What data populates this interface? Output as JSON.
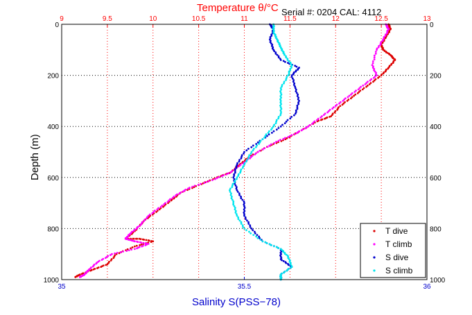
{
  "chart_data": {
    "type": "scatter",
    "title": "Temperature θ/°C",
    "serial_text": "Serial #: 0204  CAL: 4112",
    "top_axis": {
      "label": "Temperature θ/°C",
      "range": [
        9,
        13
      ],
      "ticks": [
        "9",
        "9.5",
        "10",
        "10.5",
        "11",
        "11.5",
        "12",
        "12.5",
        "13"
      ],
      "color": "#ff0000"
    },
    "bottom_axis": {
      "label": "Salinity S(PSS−78)",
      "range": [
        35,
        36
      ],
      "ticks": [
        "35",
        "35.5",
        "36"
      ],
      "color": "#0000cc"
    },
    "y_axis": {
      "label": "Depth (m)",
      "range": [
        0,
        1000
      ],
      "inverted": true,
      "ticks": [
        "0",
        "200",
        "400",
        "600",
        "800",
        "1000"
      ]
    },
    "grid": true,
    "legend_position": "bottom-right",
    "series": [
      {
        "name": "T dive",
        "axis": "top",
        "color": "#dd0000",
        "points": [
          [
            12.58,
            0
          ],
          [
            12.6,
            20
          ],
          [
            12.55,
            50
          ],
          [
            12.5,
            80
          ],
          [
            12.52,
            100
          ],
          [
            12.6,
            120
          ],
          [
            12.65,
            140
          ],
          [
            12.58,
            170
          ],
          [
            12.5,
            200
          ],
          [
            12.35,
            240
          ],
          [
            12.2,
            280
          ],
          [
            12.05,
            320
          ],
          [
            11.95,
            360
          ],
          [
            11.8,
            380
          ],
          [
            11.6,
            420
          ],
          [
            11.45,
            450
          ],
          [
            11.25,
            480
          ],
          [
            11.05,
            520
          ],
          [
            10.95,
            550
          ],
          [
            10.85,
            580
          ],
          [
            10.7,
            600
          ],
          [
            10.5,
            630
          ],
          [
            10.3,
            660
          ],
          [
            10.2,
            690
          ],
          [
            10.05,
            730
          ],
          [
            9.9,
            770
          ],
          [
            9.8,
            810
          ],
          [
            9.7,
            840
          ],
          [
            9.85,
            840
          ],
          [
            10.0,
            850
          ],
          [
            9.8,
            870
          ],
          [
            9.6,
            900
          ],
          [
            9.5,
            940
          ],
          [
            9.35,
            960
          ],
          [
            9.2,
            980
          ],
          [
            9.15,
            990
          ]
        ]
      },
      {
        "name": "T climb",
        "axis": "top",
        "color": "#ff00ff",
        "points": [
          [
            12.55,
            0
          ],
          [
            12.58,
            20
          ],
          [
            12.52,
            60
          ],
          [
            12.45,
            100
          ],
          [
            12.4,
            160
          ],
          [
            12.45,
            200
          ],
          [
            12.3,
            240
          ],
          [
            12.15,
            280
          ],
          [
            12.0,
            320
          ],
          [
            11.85,
            360
          ],
          [
            11.7,
            400
          ],
          [
            11.55,
            430
          ],
          [
            11.35,
            460
          ],
          [
            11.15,
            500
          ],
          [
            11.0,
            540
          ],
          [
            10.85,
            580
          ],
          [
            10.65,
            610
          ],
          [
            10.4,
            640
          ],
          [
            10.25,
            670
          ],
          [
            10.1,
            710
          ],
          [
            9.95,
            750
          ],
          [
            9.85,
            790
          ],
          [
            9.75,
            820
          ],
          [
            9.7,
            840
          ],
          [
            9.8,
            850
          ],
          [
            9.95,
            860
          ],
          [
            9.8,
            880
          ],
          [
            9.55,
            900
          ],
          [
            9.4,
            930
          ],
          [
            9.3,
            960
          ],
          [
            9.25,
            980
          ],
          [
            9.2,
            990
          ]
        ]
      },
      {
        "name": "S dive",
        "axis": "bottom",
        "color": "#0000cc",
        "points": [
          [
            35.57,
            0
          ],
          [
            35.58,
            20
          ],
          [
            35.57,
            60
          ],
          [
            35.58,
            100
          ],
          [
            35.6,
            140
          ],
          [
            35.65,
            170
          ],
          [
            35.63,
            200
          ],
          [
            35.64,
            250
          ],
          [
            35.65,
            300
          ],
          [
            35.64,
            350
          ],
          [
            35.6,
            400
          ],
          [
            35.55,
            450
          ],
          [
            35.5,
            500
          ],
          [
            35.48,
            550
          ],
          [
            35.47,
            600
          ],
          [
            35.48,
            650
          ],
          [
            35.5,
            700
          ],
          [
            35.5,
            750
          ],
          [
            35.52,
            800
          ],
          [
            35.55,
            850
          ],
          [
            35.6,
            880
          ],
          [
            35.6,
            920
          ],
          [
            35.63,
            950
          ],
          [
            35.6,
            980
          ],
          [
            35.6,
            1000
          ]
        ]
      },
      {
        "name": "S climb",
        "axis": "bottom",
        "color": "#00e5ee",
        "points": [
          [
            35.58,
            0
          ],
          [
            35.58,
            30
          ],
          [
            35.59,
            60
          ],
          [
            35.6,
            90
          ],
          [
            35.61,
            120
          ],
          [
            35.63,
            160
          ],
          [
            35.62,
            200
          ],
          [
            35.6,
            250
          ],
          [
            35.6,
            300
          ],
          [
            35.6,
            350
          ],
          [
            35.58,
            400
          ],
          [
            35.55,
            450
          ],
          [
            35.52,
            500
          ],
          [
            35.5,
            550
          ],
          [
            35.48,
            600
          ],
          [
            35.46,
            650
          ],
          [
            35.47,
            700
          ],
          [
            35.48,
            750
          ],
          [
            35.5,
            800
          ],
          [
            35.55,
            850
          ],
          [
            35.6,
            880
          ],
          [
            35.62,
            910
          ],
          [
            35.63,
            950
          ],
          [
            35.6,
            980
          ],
          [
            35.6,
            1000
          ]
        ]
      }
    ]
  }
}
